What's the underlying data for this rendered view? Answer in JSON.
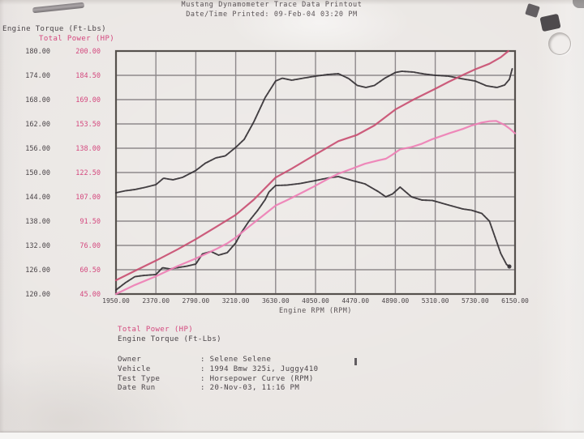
{
  "header": {
    "title": "Mustang Dynamometer Trace Data Printout",
    "printed": "Date/Time Printed: 09-Feb-04 03:20 PM"
  },
  "axes": {
    "left_primary_label": "Engine Torque (Ft-Lbs)",
    "left_secondary_label": "Total Power (HP)",
    "x_label": "Engine RPM (RPM)",
    "torque_tick_labels": [
      "180.00",
      "174.00",
      "168.00",
      "162.00",
      "156.00",
      "150.00",
      "144.00",
      "138.00",
      "132.00",
      "126.00",
      "120.00"
    ],
    "power_tick_labels": [
      "200.00",
      "184.50",
      "169.00",
      "153.50",
      "138.00",
      "122.50",
      "107.00",
      "91.50",
      "76.00",
      "60.50",
      "45.00"
    ],
    "rpm_tick_labels": [
      "1950.00",
      "2370.00",
      "2790.00",
      "3210.00",
      "3630.00",
      "4050.00",
      "4470.00",
      "4890.00",
      "5310.00",
      "5730.00",
      "6150.00"
    ]
  },
  "legend": {
    "power": "Total Power (HP)",
    "torque": "Engine Torque (Ft-Lbs)"
  },
  "info": {
    "rows": [
      {
        "label": "Owner",
        "value": ": Selene Selene"
      },
      {
        "label": "Vehicle",
        "value": ": 1994 Bmw 325i, Juggy410"
      },
      {
        "label": "Test Type",
        "value": ": Horsepower Curve (RPM)"
      },
      {
        "label": "Date Run",
        "value": ": 20-Nov-03, 11:16 PM"
      }
    ]
  },
  "colors": {
    "paper": "#e8e4e1",
    "grid": "#8e898c",
    "plot_border": "#56514d",
    "black_text": "#4a4448",
    "pink_text": "#d4487e",
    "torque_curve": "#332f33",
    "power_run1_curve": "#c94f72",
    "power_run2_curve": "#ee7fb5"
  },
  "chart_data": {
    "type": "line",
    "title": "Mustang Dynamometer Trace Data Printout",
    "xlabel": "Engine RPM (RPM)",
    "grid": true,
    "x_range": [
      1950,
      6150
    ],
    "x_tick_step": 420,
    "torque_axis": {
      "label": "Engine Torque (Ft-Lbs)",
      "range": [
        120,
        180
      ],
      "tick_step": 6
    },
    "power_axis": {
      "label": "Total Power (HP)",
      "range": [
        45,
        200
      ],
      "tick_step": 15.5
    },
    "series": [
      {
        "name": "Engine Torque run 1 (Ft-Lbs)",
        "axis": "torque",
        "color_key": "torque_curve",
        "points": [
          [
            1950,
            145.0
          ],
          [
            2050,
            145.5
          ],
          [
            2150,
            145.8
          ],
          [
            2250,
            146.3
          ],
          [
            2370,
            147.0
          ],
          [
            2450,
            148.6
          ],
          [
            2550,
            148.2
          ],
          [
            2650,
            148.8
          ],
          [
            2790,
            150.5
          ],
          [
            2890,
            152.3
          ],
          [
            3000,
            153.6
          ],
          [
            3100,
            154.1
          ],
          [
            3210,
            156.2
          ],
          [
            3300,
            158.2
          ],
          [
            3400,
            162.5
          ],
          [
            3520,
            168.5
          ],
          [
            3630,
            172.6
          ],
          [
            3700,
            173.3
          ],
          [
            3800,
            172.8
          ],
          [
            3920,
            173.3
          ],
          [
            4050,
            173.8
          ],
          [
            4180,
            174.2
          ],
          [
            4290,
            174.4
          ],
          [
            4400,
            173.2
          ],
          [
            4490,
            171.5
          ],
          [
            4580,
            171.0
          ],
          [
            4670,
            171.5
          ],
          [
            4780,
            173.3
          ],
          [
            4890,
            174.7
          ],
          [
            4960,
            175.0
          ],
          [
            5080,
            174.8
          ],
          [
            5200,
            174.3
          ],
          [
            5310,
            174.0
          ],
          [
            5450,
            173.8
          ],
          [
            5580,
            173.2
          ],
          [
            5730,
            172.6
          ],
          [
            5850,
            171.4
          ],
          [
            5960,
            171.0
          ],
          [
            6040,
            171.6
          ],
          [
            6090,
            173.0
          ],
          [
            6120,
            175.6
          ]
        ]
      },
      {
        "name": "Engine Torque run 2 (Ft-Lbs)",
        "axis": "torque",
        "color_key": "torque_curve",
        "points": [
          [
            1950,
            121.0
          ],
          [
            2050,
            122.8
          ],
          [
            2150,
            124.3
          ],
          [
            2250,
            124.6
          ],
          [
            2370,
            124.8
          ],
          [
            2440,
            126.5
          ],
          [
            2520,
            126.2
          ],
          [
            2620,
            126.6
          ],
          [
            2700,
            126.9
          ],
          [
            2790,
            127.4
          ],
          [
            2860,
            129.9
          ],
          [
            2950,
            130.5
          ],
          [
            3030,
            129.6
          ],
          [
            3120,
            130.2
          ],
          [
            3210,
            132.6
          ],
          [
            3270,
            135.2
          ],
          [
            3350,
            138.0
          ],
          [
            3440,
            140.6
          ],
          [
            3520,
            143.3
          ],
          [
            3560,
            145.2
          ],
          [
            3630,
            146.8
          ],
          [
            3750,
            146.9
          ],
          [
            3890,
            147.3
          ],
          [
            4025,
            147.9
          ],
          [
            4170,
            148.6
          ],
          [
            4290,
            149.0
          ],
          [
            4440,
            148.0
          ],
          [
            4570,
            147.2
          ],
          [
            4710,
            145.3
          ],
          [
            4790,
            144.0
          ],
          [
            4860,
            144.7
          ],
          [
            4940,
            146.4
          ],
          [
            5060,
            144.0
          ],
          [
            5170,
            143.2
          ],
          [
            5280,
            143.1
          ],
          [
            5460,
            141.9
          ],
          [
            5600,
            141.0
          ],
          [
            5690,
            140.7
          ],
          [
            5800,
            139.9
          ],
          [
            5880,
            138.0
          ],
          [
            5940,
            134.0
          ],
          [
            6000,
            130.0
          ],
          [
            6060,
            127.3
          ],
          [
            6090,
            126.8
          ]
        ]
      },
      {
        "name": "Total Power run 1 (HP)",
        "axis": "power",
        "color_key": "power_run1_curve",
        "points": [
          [
            1950,
            53.8
          ],
          [
            2150,
            59.8
          ],
          [
            2370,
            66.3
          ],
          [
            2600,
            73.5
          ],
          [
            2790,
            80.0
          ],
          [
            3000,
            87.7
          ],
          [
            3210,
            95.5
          ],
          [
            3400,
            105.2
          ],
          [
            3630,
            119.3
          ],
          [
            3800,
            125.0
          ],
          [
            4050,
            134.0
          ],
          [
            4290,
            142.5
          ],
          [
            4490,
            146.6
          ],
          [
            4670,
            152.5
          ],
          [
            4890,
            162.7
          ],
          [
            5080,
            169.0
          ],
          [
            5310,
            175.9
          ],
          [
            5450,
            180.3
          ],
          [
            5600,
            184.7
          ],
          [
            5730,
            188.3
          ],
          [
            5880,
            191.9
          ],
          [
            6000,
            196.0
          ],
          [
            6080,
            200.0
          ]
        ]
      },
      {
        "name": "Total Power run 2 (HP)",
        "axis": "power",
        "color_key": "power_run2_curve",
        "points": [
          [
            1950,
            45.0
          ],
          [
            2150,
            50.8
          ],
          [
            2370,
            56.3
          ],
          [
            2600,
            62.8
          ],
          [
            2790,
            67.7
          ],
          [
            3000,
            73.5
          ],
          [
            3120,
            77.3
          ],
          [
            3210,
            81.0
          ],
          [
            3350,
            88.0
          ],
          [
            3520,
            96.1
          ],
          [
            3630,
            101.4
          ],
          [
            3750,
            104.9
          ],
          [
            3890,
            109.1
          ],
          [
            4025,
            113.3
          ],
          [
            4170,
            118.1
          ],
          [
            4290,
            121.7
          ],
          [
            4440,
            125.1
          ],
          [
            4570,
            128.1
          ],
          [
            4710,
            130.2
          ],
          [
            4790,
            131.3
          ],
          [
            4860,
            133.9
          ],
          [
            4940,
            137.3
          ],
          [
            5060,
            138.7
          ],
          [
            5170,
            140.9
          ],
          [
            5280,
            143.8
          ],
          [
            5460,
            147.6
          ],
          [
            5600,
            150.3
          ],
          [
            5690,
            152.4
          ],
          [
            5800,
            154.4
          ],
          [
            5880,
            155.2
          ],
          [
            5950,
            155.4
          ],
          [
            6040,
            152.9
          ],
          [
            6100,
            150.2
          ],
          [
            6150,
            147.5
          ]
        ]
      }
    ]
  }
}
